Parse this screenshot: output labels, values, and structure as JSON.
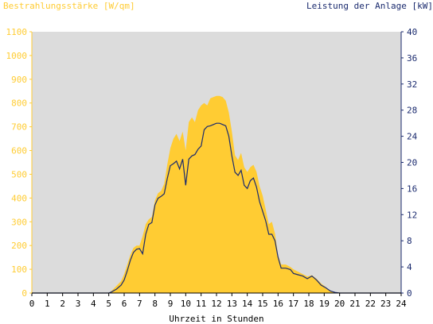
{
  "chart_data": {
    "type": "area",
    "left_axis_title": "Bestrahlungsstärke [W/qm]",
    "right_axis_title": "Leistung der Anlage [kW]",
    "xlabel": "Uhrzeit in Stunden",
    "xlim": [
      0,
      24
    ],
    "ylim_left": [
      0,
      1100
    ],
    "ylim_right": [
      0,
      40
    ],
    "x_ticks": [
      "0",
      "1",
      "2",
      "3",
      "4",
      "5",
      "6",
      "7",
      "8",
      "9",
      "10",
      "11",
      "12",
      "13",
      "14",
      "15",
      "16",
      "17",
      "18",
      "19",
      "20",
      "21",
      "22",
      "23",
      "24"
    ],
    "y_ticks_left": [
      "0",
      "100",
      "200",
      "300",
      "400",
      "500",
      "600",
      "700",
      "800",
      "900",
      "1000",
      "1100"
    ],
    "y_ticks_right": [
      "0",
      "4",
      "8",
      "12",
      "16",
      "20",
      "24",
      "28",
      "32",
      "36",
      "40"
    ],
    "grid": false,
    "colors": {
      "irradiance": "#ffcc33",
      "power": "#1a2a6e",
      "plot_background": "#dcdcdc",
      "left_axis": "#ffcc33",
      "right_axis": "#1a2a6e"
    },
    "series": [
      {
        "name": "Bestrahlungsstärke [W/qm]",
        "axis": "left",
        "type": "area",
        "points": [
          [
            5.0,
            0
          ],
          [
            5.2,
            10
          ],
          [
            5.5,
            30
          ],
          [
            5.8,
            50
          ],
          [
            6.0,
            80
          ],
          [
            6.2,
            120
          ],
          [
            6.4,
            160
          ],
          [
            6.6,
            190
          ],
          [
            6.8,
            200
          ],
          [
            7.0,
            200
          ],
          [
            7.2,
            240
          ],
          [
            7.4,
            290
          ],
          [
            7.6,
            310
          ],
          [
            7.8,
            320
          ],
          [
            8.0,
            390
          ],
          [
            8.2,
            420
          ],
          [
            8.4,
            430
          ],
          [
            8.6,
            460
          ],
          [
            8.8,
            540
          ],
          [
            9.0,
            610
          ],
          [
            9.2,
            650
          ],
          [
            9.4,
            670
          ],
          [
            9.6,
            640
          ],
          [
            9.8,
            680
          ],
          [
            10.0,
            600
          ],
          [
            10.2,
            720
          ],
          [
            10.4,
            740
          ],
          [
            10.6,
            720
          ],
          [
            10.8,
            770
          ],
          [
            11.0,
            790
          ],
          [
            11.2,
            800
          ],
          [
            11.4,
            790
          ],
          [
            11.6,
            820
          ],
          [
            11.8,
            825
          ],
          [
            12.0,
            830
          ],
          [
            12.2,
            830
          ],
          [
            12.4,
            825
          ],
          [
            12.6,
            810
          ],
          [
            12.8,
            760
          ],
          [
            13.0,
            680
          ],
          [
            13.2,
            580
          ],
          [
            13.4,
            560
          ],
          [
            13.6,
            590
          ],
          [
            13.8,
            530
          ],
          [
            14.0,
            510
          ],
          [
            14.2,
            530
          ],
          [
            14.4,
            540
          ],
          [
            14.6,
            510
          ],
          [
            14.8,
            450
          ],
          [
            15.0,
            410
          ],
          [
            15.2,
            350
          ],
          [
            15.4,
            290
          ],
          [
            15.6,
            300
          ],
          [
            15.8,
            250
          ],
          [
            16.0,
            160
          ],
          [
            16.2,
            120
          ],
          [
            16.5,
            120
          ],
          [
            16.8,
            110
          ],
          [
            17.0,
            100
          ],
          [
            17.3,
            90
          ],
          [
            17.6,
            80
          ],
          [
            17.9,
            70
          ],
          [
            18.2,
            75
          ],
          [
            18.5,
            60
          ],
          [
            18.8,
            40
          ],
          [
            19.1,
            25
          ],
          [
            19.4,
            10
          ],
          [
            19.7,
            2
          ],
          [
            20.0,
            0
          ]
        ]
      },
      {
        "name": "Leistung der Anlage [kW]",
        "axis": "right",
        "type": "line",
        "points": [
          [
            5.0,
            0
          ],
          [
            5.2,
            0.2
          ],
          [
            5.5,
            0.6
          ],
          [
            5.8,
            1.2
          ],
          [
            6.0,
            2.0
          ],
          [
            6.2,
            3.4
          ],
          [
            6.4,
            5.0
          ],
          [
            6.6,
            6.2
          ],
          [
            6.8,
            6.7
          ],
          [
            7.0,
            6.8
          ],
          [
            7.2,
            6.0
          ],
          [
            7.4,
            9.0
          ],
          [
            7.6,
            10.5
          ],
          [
            7.8,
            10.8
          ],
          [
            8.0,
            13.5
          ],
          [
            8.2,
            14.5
          ],
          [
            8.4,
            14.8
          ],
          [
            8.6,
            15.2
          ],
          [
            8.8,
            17.5
          ],
          [
            9.0,
            19.5
          ],
          [
            9.2,
            19.8
          ],
          [
            9.4,
            20.2
          ],
          [
            9.6,
            19.0
          ],
          [
            9.8,
            20.5
          ],
          [
            10.0,
            16.5
          ],
          [
            10.2,
            20.5
          ],
          [
            10.4,
            21.0
          ],
          [
            10.6,
            21.2
          ],
          [
            10.8,
            22.0
          ],
          [
            11.0,
            22.5
          ],
          [
            11.2,
            25.0
          ],
          [
            11.4,
            25.5
          ],
          [
            11.6,
            25.6
          ],
          [
            11.8,
            25.8
          ],
          [
            12.0,
            26.0
          ],
          [
            12.2,
            26.0
          ],
          [
            12.4,
            25.8
          ],
          [
            12.6,
            25.6
          ],
          [
            12.8,
            24.0
          ],
          [
            13.0,
            21.0
          ],
          [
            13.2,
            18.5
          ],
          [
            13.4,
            18.0
          ],
          [
            13.6,
            18.8
          ],
          [
            13.8,
            16.5
          ],
          [
            14.0,
            16.0
          ],
          [
            14.2,
            17.2
          ],
          [
            14.4,
            17.6
          ],
          [
            14.6,
            16.2
          ],
          [
            14.8,
            14.0
          ],
          [
            15.0,
            12.5
          ],
          [
            15.2,
            11.0
          ],
          [
            15.4,
            9.0
          ],
          [
            15.6,
            9.0
          ],
          [
            15.8,
            8.0
          ],
          [
            16.0,
            5.5
          ],
          [
            16.2,
            3.8
          ],
          [
            16.5,
            3.8
          ],
          [
            16.8,
            3.6
          ],
          [
            17.0,
            3.0
          ],
          [
            17.3,
            2.8
          ],
          [
            17.6,
            2.6
          ],
          [
            17.9,
            2.2
          ],
          [
            18.2,
            2.6
          ],
          [
            18.5,
            2.0
          ],
          [
            18.8,
            1.2
          ],
          [
            19.1,
            0.8
          ],
          [
            19.4,
            0.3
          ],
          [
            19.7,
            0.1
          ],
          [
            20.0,
            0
          ]
        ]
      }
    ]
  }
}
